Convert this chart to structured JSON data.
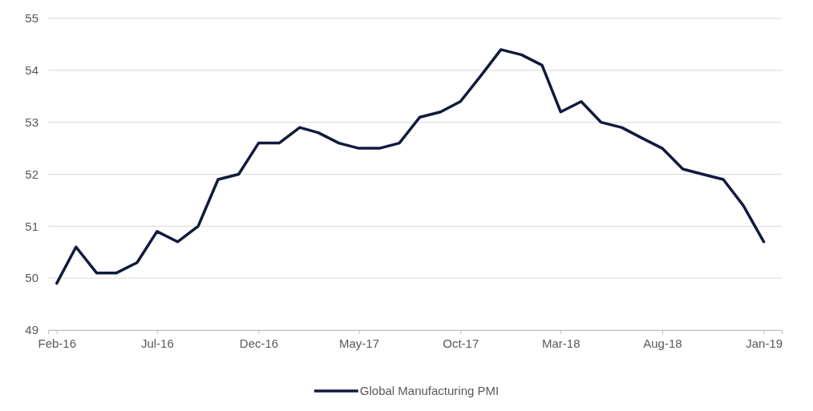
{
  "chart_data": {
    "type": "line",
    "x": [
      "2016-02",
      "2016-03",
      "2016-04",
      "2016-05",
      "2016-06",
      "2016-07",
      "2016-08",
      "2016-09",
      "2016-10",
      "2016-11",
      "2016-12",
      "2017-01",
      "2017-02",
      "2017-03",
      "2017-04",
      "2017-05",
      "2017-06",
      "2017-07",
      "2017-08",
      "2017-09",
      "2017-10",
      "2017-11",
      "2017-12",
      "2018-01",
      "2018-02",
      "2018-03",
      "2018-04",
      "2018-05",
      "2018-06",
      "2018-07",
      "2018-08",
      "2018-09",
      "2018-10",
      "2018-11",
      "2018-12",
      "2019-01"
    ],
    "series": [
      {
        "name": "Global Manufacturing PMI",
        "color": "#111a3d",
        "values": [
          49.9,
          50.6,
          50.1,
          50.1,
          50.3,
          50.9,
          50.7,
          51.0,
          51.9,
          52.0,
          52.6,
          52.6,
          52.9,
          52.8,
          52.6,
          52.5,
          52.5,
          52.6,
          53.1,
          53.2,
          53.4,
          53.9,
          54.4,
          54.3,
          54.1,
          53.2,
          53.4,
          53.0,
          52.9,
          52.7,
          52.5,
          52.1,
          52.0,
          51.9,
          51.4,
          50.7
        ]
      }
    ],
    "xlim": [
      "2016-01-19",
      "2019-01-28"
    ],
    "xticks": [
      {
        "value": "2016-02",
        "label": "Feb-16"
      },
      {
        "value": "2016-07",
        "label": "Jul-16"
      },
      {
        "value": "2016-12",
        "label": "Dec-16"
      },
      {
        "value": "2017-05",
        "label": "May-17"
      },
      {
        "value": "2017-10",
        "label": "Oct-17"
      },
      {
        "value": "2018-03",
        "label": "Mar-18"
      },
      {
        "value": "2018-08",
        "label": "Aug-18"
      },
      {
        "value": "2019-01",
        "label": "Jan-19"
      }
    ],
    "ylim": [
      49,
      55
    ],
    "yticks": [
      49,
      50,
      51,
      52,
      53,
      54,
      55
    ],
    "grid": "y",
    "legend": "bottom",
    "marker": "none",
    "line_style": "solid"
  }
}
